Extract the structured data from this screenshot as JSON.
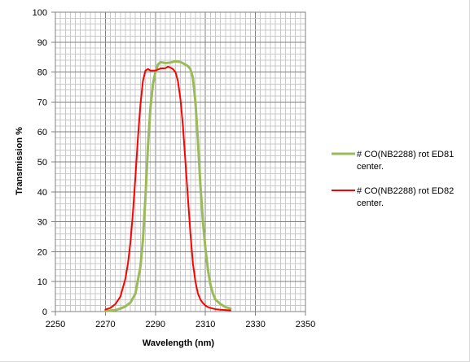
{
  "chart_data": {
    "type": "line",
    "title": "",
    "xlabel": "Wavelength (nm)",
    "ylabel": "Transmission %",
    "xlim": [
      2250,
      2350
    ],
    "ylim": [
      0,
      100
    ],
    "x_ticks": [
      2250,
      2270,
      2290,
      2310,
      2330,
      2350
    ],
    "y_ticks": [
      0,
      10,
      20,
      30,
      40,
      50,
      60,
      70,
      80,
      90,
      100
    ],
    "grid": true,
    "legend_position": "right",
    "series": [
      {
        "name": "# CO(NB2288) rot ED81 center.",
        "color": "#9bbb59",
        "x": [
          2270,
          2272,
          2274,
          2276,
          2278,
          2280,
          2282,
          2284,
          2285,
          2286,
          2287,
          2288,
          2289,
          2290,
          2291,
          2292,
          2293,
          2294,
          2296,
          2298,
          2300,
          2302,
          2303,
          2304,
          2305,
          2306,
          2307,
          2308,
          2309,
          2310,
          2311,
          2312,
          2313,
          2314,
          2316,
          2318,
          2320
        ],
        "y": [
          0.2,
          0.3,
          0.5,
          1,
          1.7,
          3,
          6,
          15,
          24,
          38,
          55,
          68,
          76,
          80,
          82.5,
          83.3,
          83.2,
          83,
          83.2,
          83.6,
          83.4,
          82.5,
          82,
          81,
          78,
          70,
          57,
          42,
          30,
          21,
          14,
          9,
          6,
          4,
          2.5,
          1.5,
          1
        ]
      },
      {
        "name": "# CO(NB2288) rot ED82 center.",
        "color": "#ff0000",
        "x": [
          2270,
          2272,
          2274,
          2276,
          2278,
          2279,
          2280,
          2281,
          2282,
          2283,
          2284,
          2285,
          2286,
          2287,
          2288,
          2290,
          2292,
          2294,
          2295,
          2296,
          2297,
          2298,
          2299,
          2300,
          2301,
          2302,
          2303,
          2304,
          2305,
          2306,
          2307,
          2308,
          2309,
          2310,
          2311,
          2312,
          2314,
          2316,
          2318,
          2320
        ],
        "y": [
          0.7,
          1.2,
          2.5,
          5,
          11,
          16,
          23,
          33,
          45,
          58,
          69,
          77,
          80.5,
          81,
          80.5,
          80.5,
          81.2,
          81.3,
          81.8,
          81.5,
          81,
          80,
          77,
          71,
          62,
          50,
          38,
          26,
          16,
          10,
          6,
          4,
          2.8,
          2,
          1.5,
          1.2,
          0.8,
          0.6,
          0.5,
          0.4
        ]
      }
    ]
  }
}
